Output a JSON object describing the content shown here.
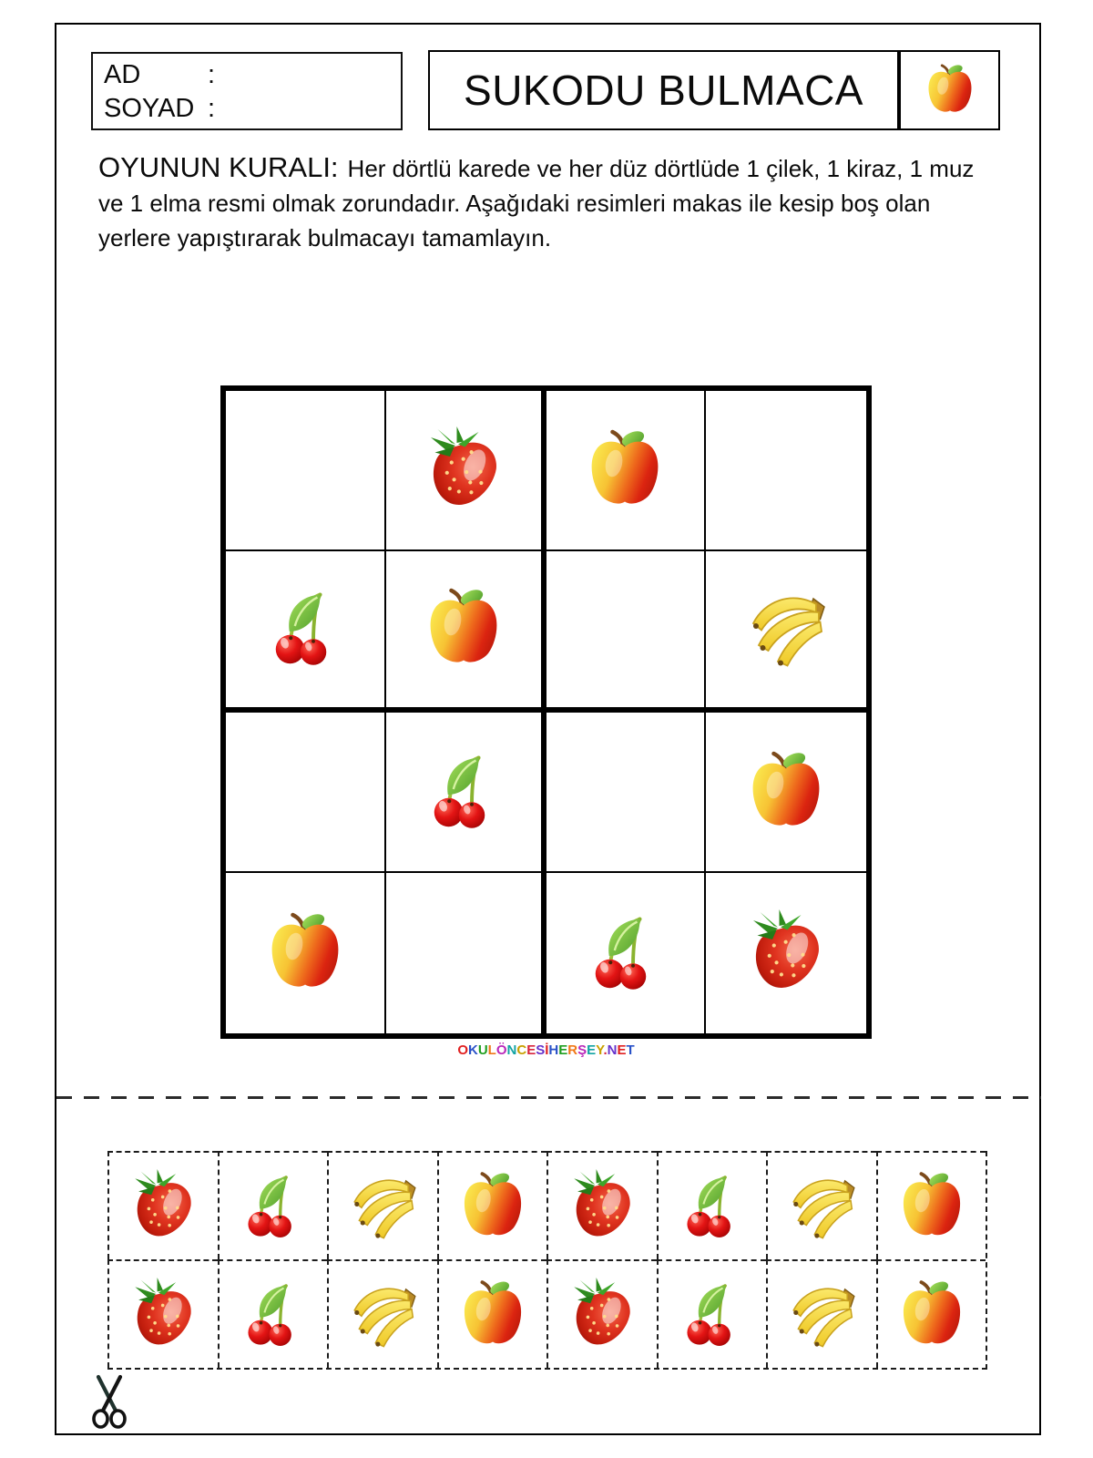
{
  "header": {
    "name_label": "AD",
    "name_colon": ":",
    "surname_label": "SOYAD",
    "surname_colon": ":",
    "title": "SUKODU BULMACA",
    "title_icon": "apple-icon"
  },
  "rules": {
    "heading": "OYUNUN KURALI:",
    "line1": "Her dörtlü karede ve her düz dörtlüde 1 çilek, 1 kiraz, 1 muz",
    "line2": "ve 1 elma resmi olmak zorundadır. Aşağıdaki resimleri makas ile kesip boş olan",
    "line3": "yerlere yapıştırarak bulmacayı tamamlayın."
  },
  "puzzle": {
    "rows": 4,
    "cols": 4,
    "cells": [
      null,
      "strawberry",
      "apple",
      null,
      "cherry",
      "apple",
      null,
      "banana",
      null,
      "cherry",
      null,
      "apple",
      "apple",
      null,
      "cherry",
      "strawberry"
    ]
  },
  "footer_logo": "OKULÖNCESİHERŞEY.NET",
  "cutout": {
    "rows": [
      [
        "strawberry",
        "cherry",
        "banana",
        "apple",
        "strawberry",
        "cherry",
        "banana",
        "apple"
      ],
      [
        "strawberry",
        "cherry",
        "banana",
        "apple",
        "strawberry",
        "cherry",
        "banana",
        "apple"
      ]
    ],
    "scissors_icon": "scissors-icon"
  },
  "colors": {
    "apple_red": "#D8200D",
    "apple_yellow": "#FAE94F",
    "strawberry_red": "#C01C0C",
    "cherry_red": "#E31414",
    "banana_yellow": "#F6DC3E",
    "leaf_green": "#4F9E2C",
    "line_black": "#000000"
  }
}
